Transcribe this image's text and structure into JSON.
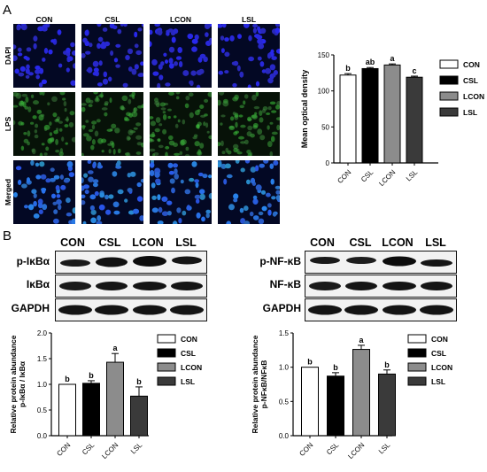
{
  "panel_a": {
    "letter": "A",
    "columns": [
      "CON",
      "CSL",
      "LCON",
      "LSL"
    ],
    "rows": [
      "DAPI",
      "LPS",
      "Merged"
    ]
  },
  "panel_b": {
    "letter": "B",
    "left_blot": {
      "columns": [
        "CON",
        "CSL",
        "LCON",
        "LSL"
      ],
      "rows": [
        "p-IκBα",
        "IκBα",
        "GAPDH"
      ]
    },
    "right_blot": {
      "columns": [
        "CON",
        "CSL",
        "LCON",
        "LSL"
      ],
      "rows": [
        "p-NF-κB",
        "NF-κB",
        "GAPDH"
      ]
    }
  },
  "colors": {
    "CON": "#ffffff",
    "CSL": "#000000",
    "LCON": "#8c8c8c",
    "LSL": "#3a3a3a"
  },
  "chart_data": [
    {
      "id": "mod",
      "type": "bar",
      "categories": [
        "CON",
        "CSL",
        "LCON",
        "LSL"
      ],
      "values": [
        122,
        131,
        136,
        119
      ],
      "errors": [
        2,
        1.5,
        1.5,
        1.5
      ],
      "letters": [
        "b",
        "ab",
        "a",
        "c"
      ],
      "ylabel": "Mean optical density",
      "ylim": [
        0,
        150
      ],
      "yticks": [
        "0",
        "50",
        "100",
        "150"
      ],
      "legend": [
        "CON",
        "CSL",
        "LCON",
        "LSL"
      ],
      "legend_position": "right"
    },
    {
      "id": "ikb",
      "type": "bar",
      "categories": [
        "CON",
        "CSL",
        "LCON",
        "LSL"
      ],
      "values": [
        1.0,
        1.02,
        1.43,
        0.77
      ],
      "errors": [
        0.0,
        0.05,
        0.17,
        0.18
      ],
      "letters": [
        "b",
        "b",
        "a",
        "b"
      ],
      "ylabel": "Relative protein abundance",
      "ylabel2": "p-IκBα / IκBα",
      "ylim": [
        0,
        2.0
      ],
      "yticks": [
        "0.0",
        "0.5",
        "1.0",
        "1.5",
        "2.0"
      ],
      "legend": [
        "CON",
        "CSL",
        "LCON",
        "LSL"
      ],
      "legend_position": "right"
    },
    {
      "id": "nfkb",
      "type": "bar",
      "categories": [
        "CON",
        "CSL",
        "LCON",
        "LSL"
      ],
      "values": [
        1.0,
        0.87,
        1.26,
        0.9
      ],
      "errors": [
        0.0,
        0.05,
        0.06,
        0.06
      ],
      "letters": [
        "b",
        "b",
        "a",
        "b"
      ],
      "ylabel": "Relative protein abundance",
      "ylabel2": "p-NFκB/NFκB",
      "ylim": [
        0,
        1.5
      ],
      "yticks": [
        "0.0",
        "0.5",
        "1.0",
        "1.5"
      ],
      "legend": [
        "CON",
        "CSL",
        "LCON",
        "LSL"
      ],
      "legend_position": "right"
    }
  ]
}
